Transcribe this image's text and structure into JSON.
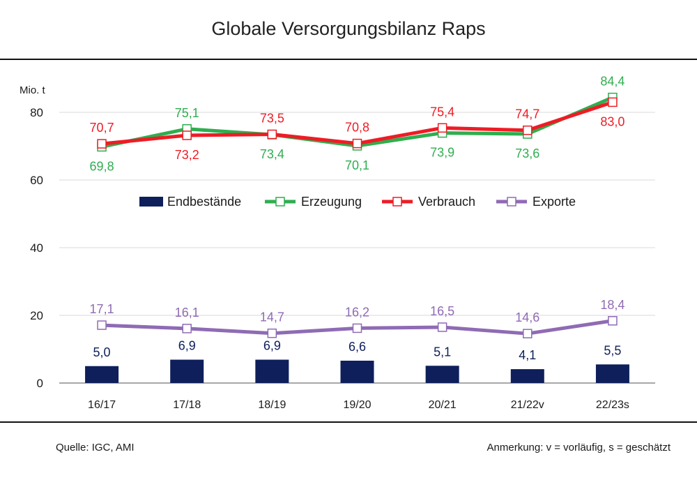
{
  "page": {
    "title": "Globale Versorgungsbilanz Raps",
    "source": "Quelle: IGC, AMI",
    "note": "Anmerkung: v = vorläufig, s = geschätzt"
  },
  "colors": {
    "endbestaende": "#0e1f5b",
    "erzeugung": "#2fae4f",
    "verbrauch": "#ee1c25",
    "exporte": "#8f6bb4",
    "grid": "#d9d9d9",
    "axis": "#8c8c8c"
  },
  "chart_data": {
    "type": "bar+line",
    "title": "Globale Versorgungsbilanz Raps",
    "ylabel": "Mio. t",
    "ylim": [
      0,
      85
    ],
    "yticks": [
      0,
      20,
      40,
      60,
      80
    ],
    "grid": true,
    "legend_position": "center",
    "categories": [
      "16/17",
      "17/18",
      "18/19",
      "19/20",
      "20/21",
      "21/22v",
      "22/23s"
    ],
    "series": [
      {
        "name": "Endbestände",
        "type": "bar",
        "color": "#0e1f5b",
        "values": [
          5.0,
          6.9,
          6.9,
          6.6,
          5.1,
          4.1,
          5.5
        ],
        "labels": [
          "5,0",
          "6,9",
          "6,9",
          "6,6",
          "5,1",
          "4,1",
          "5,5"
        ]
      },
      {
        "name": "Erzeugung",
        "type": "line",
        "color": "#2fae4f",
        "values": [
          69.8,
          75.1,
          73.4,
          70.1,
          73.9,
          73.6,
          84.4
        ],
        "labels": [
          "69,8",
          "75,1",
          "73,4",
          "70,1",
          "73,9",
          "73,6",
          "84,4"
        ],
        "label_pos": [
          "below",
          "above",
          "below",
          "below",
          "below",
          "below",
          "above"
        ]
      },
      {
        "name": "Verbrauch",
        "type": "line",
        "color": "#ee1c25",
        "values": [
          70.7,
          73.2,
          73.5,
          70.8,
          75.4,
          74.7,
          83.0
        ],
        "labels": [
          "70,7",
          "73,2",
          "73,5",
          "70,8",
          "75,4",
          "74,7",
          "83,0"
        ],
        "label_pos": [
          "above",
          "below",
          "above",
          "above",
          "above",
          "above",
          "below"
        ]
      },
      {
        "name": "Exporte",
        "type": "line",
        "color": "#8f6bb4",
        "values": [
          17.1,
          16.1,
          14.7,
          16.2,
          16.5,
          14.6,
          18.4
        ],
        "labels": [
          "17,1",
          "16,1",
          "14,7",
          "16,2",
          "16,5",
          "14,6",
          "18,4"
        ],
        "label_pos": [
          "above",
          "above",
          "above",
          "above",
          "above",
          "above",
          "above"
        ]
      }
    ]
  }
}
